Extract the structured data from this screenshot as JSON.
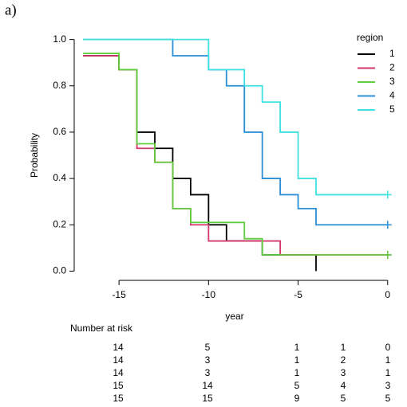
{
  "panel_label": "a)",
  "chart_data": {
    "type": "step",
    "xlabel": "year",
    "ylabel": "Probability",
    "xlim": [
      -17.5,
      0.5
    ],
    "ylim": [
      -0.04,
      1.04
    ],
    "xticks": [
      -15,
      -10,
      -5,
      0
    ],
    "yticks": [
      {
        "value": 0,
        "label": "0.0"
      },
      {
        "value": 0.2,
        "label": "0.2"
      },
      {
        "value": 0.4,
        "label": "0.4"
      },
      {
        "value": 0.6,
        "label": "0.6"
      },
      {
        "value": 0.8,
        "label": "0.8"
      },
      {
        "value": 1,
        "label": "1.0"
      }
    ],
    "legend_title": "region",
    "legend": "top-right",
    "series": [
      {
        "name": "1",
        "color": "#000000",
        "x": [
          -17,
          -15,
          -14,
          -13,
          -12,
          -11,
          -10,
          -9,
          -7,
          -4
        ],
        "values": [
          0.93,
          0.87,
          0.6,
          0.53,
          0.4,
          0.33,
          0.2,
          0.13,
          0.07,
          0.0
        ]
      },
      {
        "name": "2",
        "color": "#d2386a",
        "x": [
          -17,
          -15,
          -14,
          -13,
          -12,
          -11,
          -10,
          -6,
          0
        ],
        "values": [
          0.93,
          0.87,
          0.53,
          0.47,
          0.27,
          0.2,
          0.13,
          0.07,
          0.07
        ]
      },
      {
        "name": "3",
        "color": "#5fcf3e",
        "x": [
          -17,
          -15,
          -14,
          -13,
          -12,
          -11,
          -8,
          -7,
          0
        ],
        "values": [
          0.94,
          0.87,
          0.55,
          0.47,
          0.27,
          0.21,
          0.14,
          0.07,
          0.07
        ]
      },
      {
        "name": "4",
        "color": "#2a8fd6",
        "x": [
          -17,
          -12,
          -10,
          -9,
          -8,
          -7,
          -6,
          -5,
          -4,
          0
        ],
        "values": [
          1.0,
          0.93,
          0.87,
          0.8,
          0.6,
          0.4,
          0.33,
          0.27,
          0.2,
          0.2
        ]
      },
      {
        "name": "5",
        "color": "#3fe0e0",
        "x": [
          -17,
          -10,
          -8,
          -7,
          -6,
          -5,
          -4,
          0
        ],
        "values": [
          1.0,
          0.87,
          0.8,
          0.73,
          0.6,
          0.4,
          0.33,
          0.33
        ]
      }
    ],
    "risk_table": {
      "title": "Number at risk",
      "rows": [
        [
          14,
          5,
          1,
          1,
          0
        ],
        [
          14,
          3,
          1,
          2,
          1
        ],
        [
          14,
          3,
          1,
          3,
          1
        ],
        [
          15,
          14,
          5,
          4,
          3
        ],
        [
          15,
          15,
          9,
          5,
          5
        ]
      ]
    }
  }
}
